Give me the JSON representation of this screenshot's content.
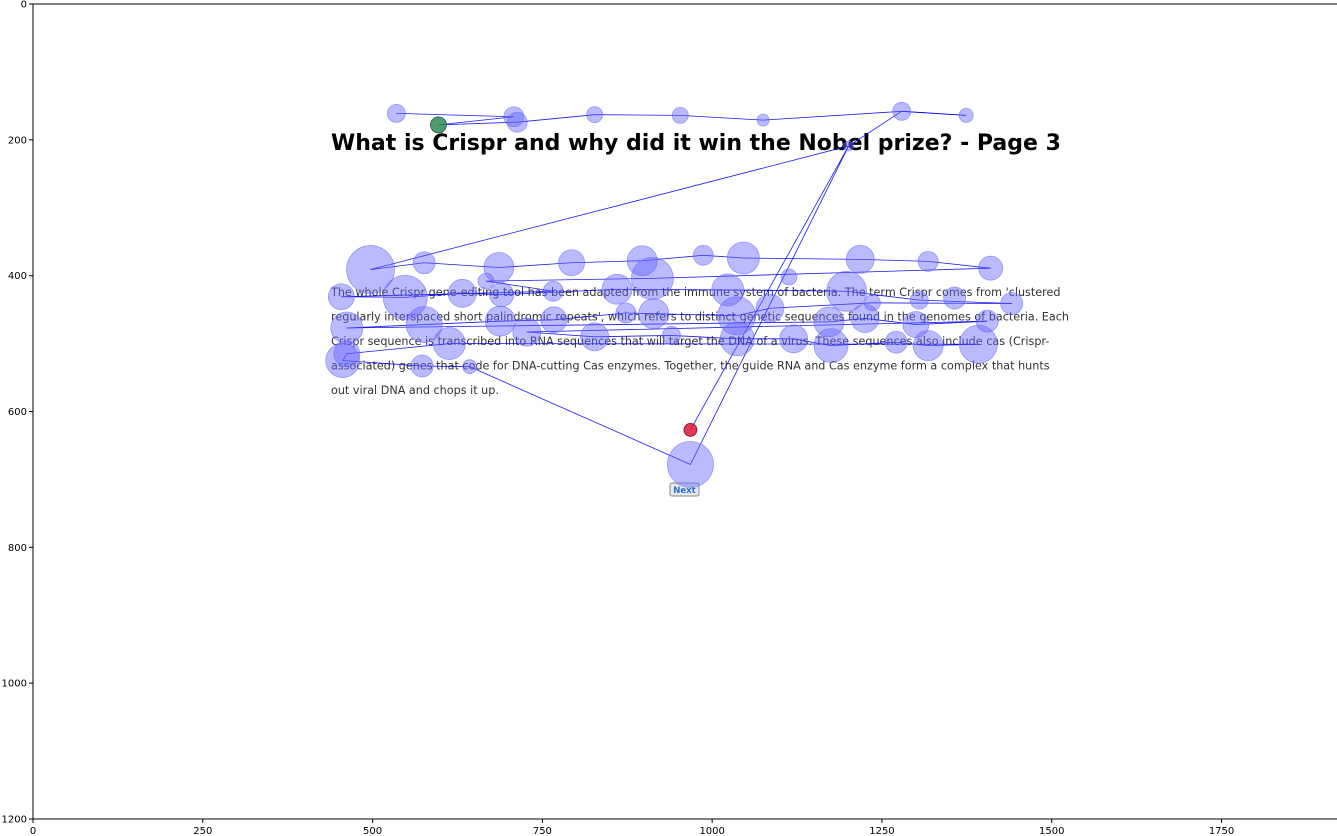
{
  "chart_data": {
    "type": "scatter",
    "subtype": "gaze-scanpath",
    "xlim": [
      0,
      1920
    ],
    "ylim": [
      1200,
      0
    ],
    "xticks": [
      0,
      250,
      500,
      750,
      1000,
      1250,
      1500,
      1750
    ],
    "yticks": [
      0,
      200,
      400,
      600,
      800,
      1000,
      1200
    ],
    "stimulus": {
      "title": "What is Crispr and why did it win the Nobel prize? - Page 3",
      "paragraph_lines": [
        "The whole Crispr gene-editing tool has been adapted from the immune system of bacteria. The term Crispr comes from 'clustered",
        "regularly interspaced short palindromic repeats', which refers to distinct genetic sequences found in the genomes of bacteria. Each",
        "Crispr sequence is transcribed into RNA sequences that will target the DNA of a virus. These sequences also include cas (Crispr-",
        "associated) genes that code for DNA-cutting Cas enzymes. Together, the guide RNA and Cas enzyme form a complex that hunts",
        "out viral DNA and chops it up."
      ],
      "button_label": "Next"
    },
    "colors": {
      "fixation": "#6666ff",
      "path": "#0000ee",
      "start": "#2e8b57",
      "end": "#dc143c"
    },
    "start_point": {
      "x": 597,
      "y": 178
    },
    "end_point": {
      "x": 968,
      "y": 627
    },
    "fixations": [
      {
        "x": 535,
        "y": 161,
        "r": 9
      },
      {
        "x": 708,
        "y": 166,
        "r": 10
      },
      {
        "x": 713,
        "y": 174,
        "r": 10
      },
      {
        "x": 827,
        "y": 163,
        "r": 8
      },
      {
        "x": 953,
        "y": 164,
        "r": 8
      },
      {
        "x": 1075,
        "y": 171,
        "r": 6
      },
      {
        "x": 1279,
        "y": 158,
        "r": 9
      },
      {
        "x": 1374,
        "y": 164,
        "r": 7
      },
      {
        "x": 1201,
        "y": 209,
        "r": 5
      },
      {
        "x": 497,
        "y": 391,
        "r": 24
      },
      {
        "x": 576,
        "y": 381,
        "r": 11
      },
      {
        "x": 686,
        "y": 388,
        "r": 15
      },
      {
        "x": 793,
        "y": 381,
        "r": 13
      },
      {
        "x": 897,
        "y": 378,
        "r": 15
      },
      {
        "x": 987,
        "y": 370,
        "r": 10
      },
      {
        "x": 1046,
        "y": 374,
        "r": 16
      },
      {
        "x": 1218,
        "y": 376,
        "r": 14
      },
      {
        "x": 1318,
        "y": 379,
        "r": 10
      },
      {
        "x": 1410,
        "y": 389,
        "r": 12
      },
      {
        "x": 667,
        "y": 408,
        "r": 8
      },
      {
        "x": 912,
        "y": 404,
        "r": 21
      },
      {
        "x": 1113,
        "y": 402,
        "r": 8
      },
      {
        "x": 454,
        "y": 431,
        "r": 13
      },
      {
        "x": 548,
        "y": 432,
        "r": 22
      },
      {
        "x": 632,
        "y": 426,
        "r": 14
      },
      {
        "x": 690,
        "y": 428,
        "r": 12
      },
      {
        "x": 766,
        "y": 423,
        "r": 10
      },
      {
        "x": 860,
        "y": 420,
        "r": 15
      },
      {
        "x": 1023,
        "y": 421,
        "r": 16
      },
      {
        "x": 1198,
        "y": 423,
        "r": 20
      },
      {
        "x": 1305,
        "y": 436,
        "r": 9
      },
      {
        "x": 1357,
        "y": 433,
        "r": 11
      },
      {
        "x": 1441,
        "y": 441,
        "r": 11
      },
      {
        "x": 1236,
        "y": 440,
        "r": 8
      },
      {
        "x": 1085,
        "y": 448,
        "r": 14
      },
      {
        "x": 1036,
        "y": 459,
        "r": 19
      },
      {
        "x": 914,
        "y": 456,
        "r": 15
      },
      {
        "x": 873,
        "y": 455,
        "r": 10
      },
      {
        "x": 767,
        "y": 465,
        "r": 13
      },
      {
        "x": 688,
        "y": 467,
        "r": 15
      },
      {
        "x": 576,
        "y": 472,
        "r": 18
      },
      {
        "x": 462,
        "y": 477,
        "r": 16
      },
      {
        "x": 1172,
        "y": 468,
        "r": 15
      },
      {
        "x": 1225,
        "y": 463,
        "r": 14
      },
      {
        "x": 1300,
        "y": 472,
        "r": 13
      },
      {
        "x": 1405,
        "y": 467,
        "r": 11
      },
      {
        "x": 727,
        "y": 483,
        "r": 14
      },
      {
        "x": 827,
        "y": 490,
        "r": 14
      },
      {
        "x": 940,
        "y": 488,
        "r": 9
      },
      {
        "x": 1037,
        "y": 493,
        "r": 17
      },
      {
        "x": 1120,
        "y": 493,
        "r": 14
      },
      {
        "x": 1175,
        "y": 503,
        "r": 17
      },
      {
        "x": 1271,
        "y": 498,
        "r": 11
      },
      {
        "x": 1318,
        "y": 503,
        "r": 15
      },
      {
        "x": 1392,
        "y": 501,
        "r": 19
      },
      {
        "x": 613,
        "y": 500,
        "r": 16
      },
      {
        "x": 462,
        "y": 515,
        "r": 13
      },
      {
        "x": 456,
        "y": 525,
        "r": 17
      },
      {
        "x": 573,
        "y": 533,
        "r": 11
      },
      {
        "x": 643,
        "y": 534,
        "r": 7
      },
      {
        "x": 968,
        "y": 678,
        "r": 23
      }
    ],
    "path": [
      [
        535,
        161
      ],
      [
        708,
        166
      ],
      [
        597,
        178
      ],
      [
        713,
        174
      ],
      [
        827,
        163
      ],
      [
        953,
        164
      ],
      [
        1075,
        171
      ],
      [
        1279,
        158
      ],
      [
        1374,
        164
      ],
      [
        1279,
        158
      ],
      [
        1201,
        209
      ],
      [
        497,
        391
      ],
      [
        576,
        381
      ],
      [
        686,
        388
      ],
      [
        793,
        381
      ],
      [
        897,
        378
      ],
      [
        987,
        370
      ],
      [
        1046,
        374
      ],
      [
        1218,
        376
      ],
      [
        1318,
        379
      ],
      [
        1410,
        389
      ],
      [
        912,
        404
      ],
      [
        667,
        408
      ],
      [
        767,
        423
      ],
      [
        454,
        431
      ],
      [
        548,
        432
      ],
      [
        632,
        426
      ],
      [
        690,
        428
      ],
      [
        860,
        420
      ],
      [
        1023,
        421
      ],
      [
        1198,
        423
      ],
      [
        1305,
        436
      ],
      [
        1441,
        441
      ],
      [
        1236,
        440
      ],
      [
        1085,
        448
      ],
      [
        1036,
        459
      ],
      [
        914,
        456
      ],
      [
        873,
        455
      ],
      [
        767,
        465
      ],
      [
        688,
        467
      ],
      [
        576,
        472
      ],
      [
        462,
        477
      ],
      [
        1172,
        468
      ],
      [
        1225,
        463
      ],
      [
        1300,
        472
      ],
      [
        1405,
        467
      ],
      [
        727,
        483
      ],
      [
        827,
        490
      ],
      [
        940,
        488
      ],
      [
        1037,
        493
      ],
      [
        1120,
        493
      ],
      [
        1175,
        503
      ],
      [
        1271,
        498
      ],
      [
        1318,
        503
      ],
      [
        1392,
        501
      ],
      [
        613,
        500
      ],
      [
        462,
        515
      ],
      [
        456,
        525
      ],
      [
        573,
        533
      ],
      [
        643,
        534
      ],
      [
        968,
        678
      ],
      [
        1201,
        209
      ],
      [
        968,
        627
      ]
    ]
  }
}
